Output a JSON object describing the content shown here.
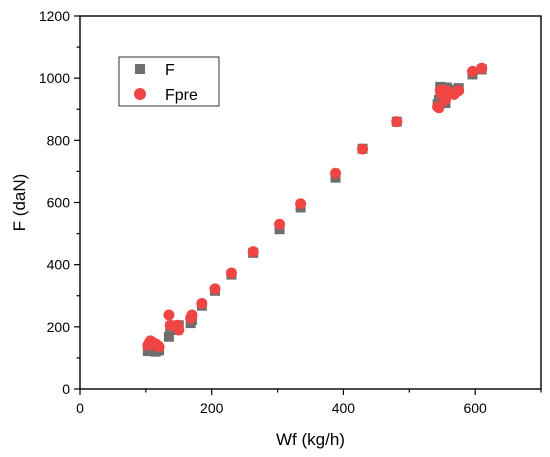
{
  "chart_data": {
    "type": "scatter",
    "xlabel": "Wf (kg/h)",
    "ylabel": "F (daN)",
    "xlim": [
      0,
      700
    ],
    "ylim": [
      0,
      1200
    ],
    "xticks": [
      0,
      200,
      400,
      600
    ],
    "yticks": [
      0,
      200,
      400,
      600,
      800,
      1000,
      1200
    ],
    "x_minor_step": 100,
    "y_minor_step": 100,
    "grid": false,
    "legend_position": "top-left",
    "series": [
      {
        "name": "F",
        "marker": "square",
        "color": "#6e6e6e",
        "points": [
          [
            103,
            122
          ],
          [
            105,
            130
          ],
          [
            107,
            138
          ],
          [
            110,
            125
          ],
          [
            112,
            133
          ],
          [
            115,
            120
          ],
          [
            118,
            128
          ],
          [
            120,
            124
          ],
          [
            135,
            168
          ],
          [
            137,
            200
          ],
          [
            148,
            190
          ],
          [
            150,
            205
          ],
          [
            168,
            212
          ],
          [
            170,
            222
          ],
          [
            185,
            268
          ],
          [
            205,
            316
          ],
          [
            230,
            368
          ],
          [
            263,
            438
          ],
          [
            303,
            514
          ],
          [
            335,
            584
          ],
          [
            388,
            680
          ],
          [
            429,
            773
          ],
          [
            481,
            860
          ],
          [
            543,
            916
          ],
          [
            545,
            930
          ],
          [
            547,
            972
          ],
          [
            548,
            960
          ],
          [
            550,
            944
          ],
          [
            552,
            952
          ],
          [
            555,
            920
          ],
          [
            557,
            970
          ],
          [
            560,
            963
          ],
          [
            568,
            953
          ],
          [
            572,
            962
          ],
          [
            575,
            968
          ],
          [
            596,
            1012
          ],
          [
            610,
            1028
          ]
        ]
      },
      {
        "name": "Fpre",
        "marker": "circle",
        "color": "#f04545",
        "points": [
          [
            103,
            140
          ],
          [
            105,
            148
          ],
          [
            107,
            155
          ],
          [
            110,
            150
          ],
          [
            112,
            143
          ],
          [
            115,
            145
          ],
          [
            118,
            140
          ],
          [
            120,
            136
          ],
          [
            135,
            238
          ],
          [
            137,
            205
          ],
          [
            148,
            205
          ],
          [
            150,
            190
          ],
          [
            168,
            228
          ],
          [
            170,
            238
          ],
          [
            185,
            275
          ],
          [
            205,
            322
          ],
          [
            230,
            373
          ],
          [
            263,
            442
          ],
          [
            303,
            530
          ],
          [
            335,
            596
          ],
          [
            388,
            694
          ],
          [
            429,
            772
          ],
          [
            481,
            860
          ],
          [
            543,
            908
          ],
          [
            545,
            905
          ],
          [
            547,
            960
          ],
          [
            548,
            952
          ],
          [
            550,
            945
          ],
          [
            552,
            962
          ],
          [
            555,
            930
          ],
          [
            557,
            958
          ],
          [
            560,
            950
          ],
          [
            568,
            948
          ],
          [
            572,
            958
          ],
          [
            575,
            960
          ],
          [
            596,
            1022
          ],
          [
            610,
            1032
          ]
        ]
      }
    ]
  }
}
